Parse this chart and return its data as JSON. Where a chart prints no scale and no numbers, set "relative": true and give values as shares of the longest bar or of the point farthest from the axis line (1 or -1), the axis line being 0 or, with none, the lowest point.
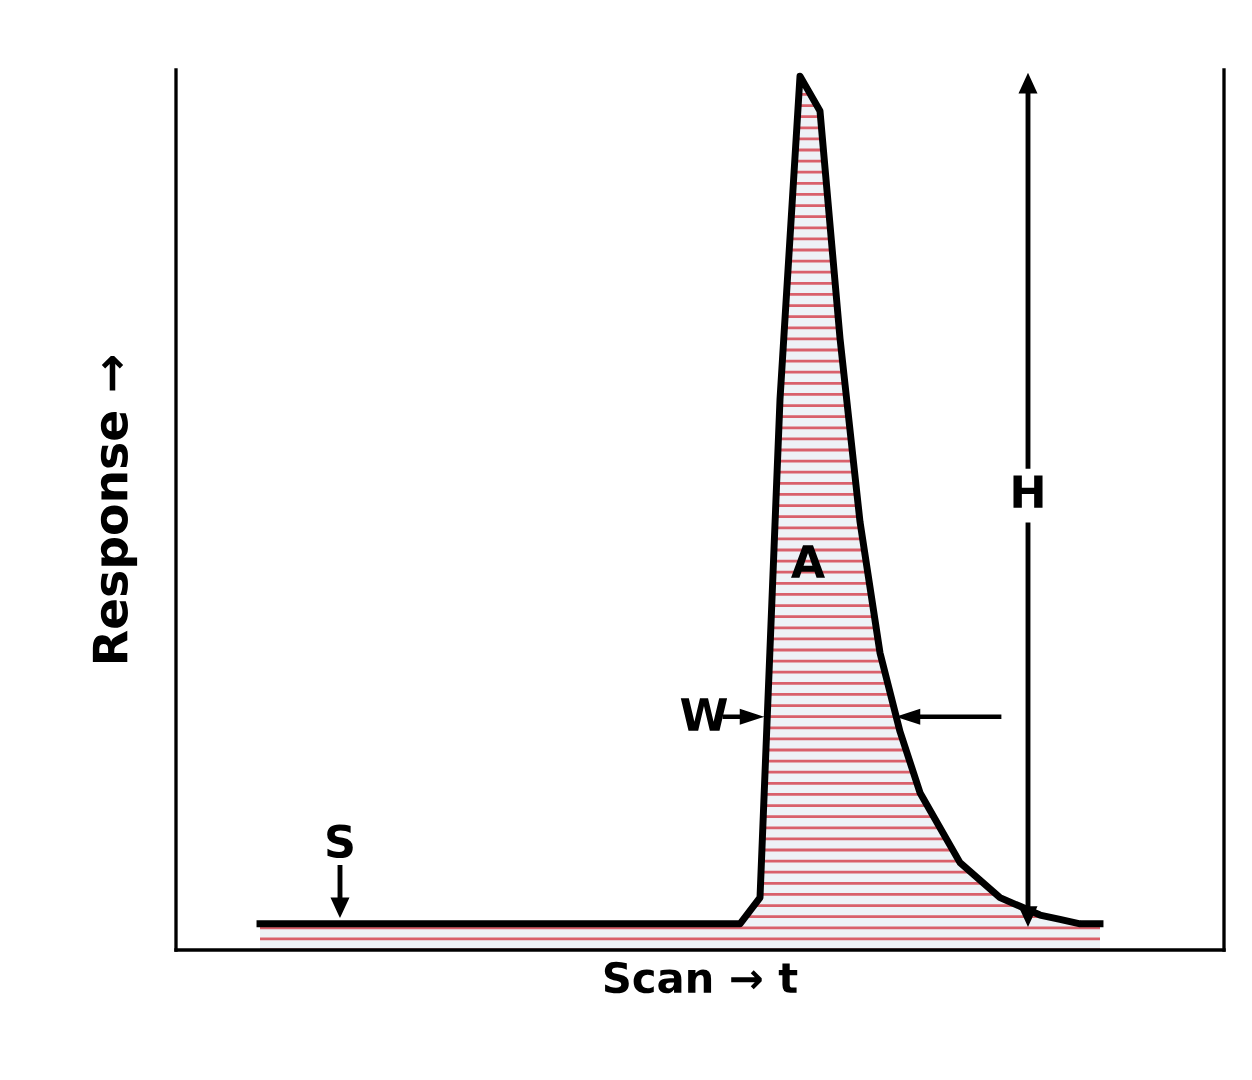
{
  "chart_data": {
    "type": "area",
    "relative": true,
    "tick_labels": false,
    "grid": false,
    "xlabel": "Scan → t",
    "ylabel": "Response →",
    "categories": [
      null,
      null,
      null,
      null,
      null,
      null,
      null,
      null,
      null,
      null,
      null,
      null,
      null,
      null,
      null,
      null,
      null,
      null,
      null,
      null,
      null,
      null,
      null,
      null,
      null,
      null,
      null,
      null,
      null,
      null,
      null,
      null,
      null,
      null,
      null,
      null,
      null,
      null,
      null,
      null,
      null,
      null,
      null
    ],
    "series": [
      {
        "color": "#000000",
        "values": [
          0.03,
          0.03,
          0.03,
          0.03,
          0.03,
          0.03,
          0.03,
          0.03,
          0.03,
          0.03,
          0.03,
          0.03,
          0.03,
          0.03,
          0.03,
          0.03,
          0.03,
          0.03,
          0.03,
          0.03,
          0.03,
          0.03,
          0.03,
          0.03,
          0.03,
          0.06,
          0.63,
          1.0,
          0.96,
          0.7,
          0.49,
          0.34,
          0.25,
          0.18,
          0.14,
          0.1,
          0.08,
          0.06,
          0.05,
          0.04,
          0.035,
          0.03,
          0.03
        ]
      }
    ],
    "annotations": [
      "S",
      "W",
      "A",
      "H"
    ]
  }
}
